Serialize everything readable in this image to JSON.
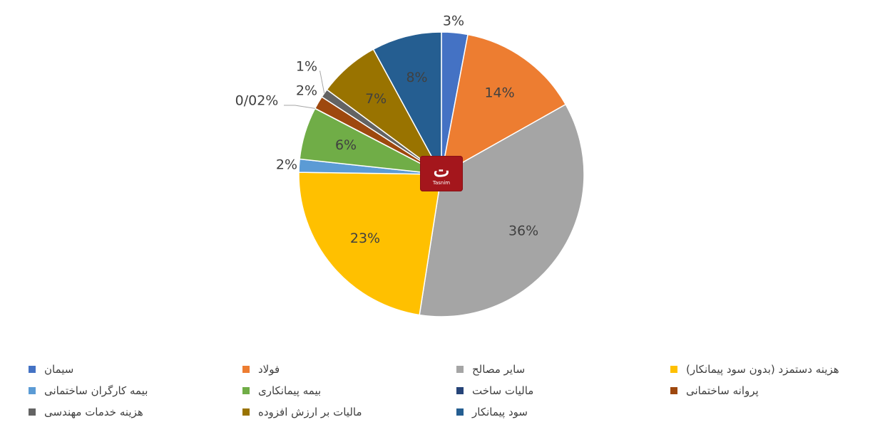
{
  "chart_data": {
    "type": "pie",
    "title": "",
    "logo_text": "تسنیم Tasnim",
    "slices": [
      {
        "name": "سیمان",
        "value": 3,
        "label": "3%",
        "color": "#4472c4"
      },
      {
        "name": "فولاد",
        "value": 14,
        "label": "14%",
        "color": "#ed7d31"
      },
      {
        "name": "سایر مصالح",
        "value": 36,
        "label": "36%",
        "color": "#a5a5a5"
      },
      {
        "name": "هزینه دستمزد (بدون سود پیمانکار)",
        "value": 23,
        "label": "23%",
        "color": "#ffc000"
      },
      {
        "name": "بیمه کارگران ساختمانی",
        "value": 1.5,
        "label": "2%",
        "color": "#5b9bd5"
      },
      {
        "name": "بیمه پیمانکاری",
        "value": 6,
        "label": "6%",
        "color": "#70ad47"
      },
      {
        "name": "مالیات ساخت",
        "value": 0.02,
        "label": "0/02%",
        "color": "#264478"
      },
      {
        "name": "پروانه ساختمانی",
        "value": 1.5,
        "label": "2%",
        "color": "#9e480e"
      },
      {
        "name": "هزینه خدمات مهندسی",
        "value": 1,
        "label": "1%",
        "color": "#636363"
      },
      {
        "name": "مالیات بر ارزش افزوده",
        "value": 7,
        "label": "7%",
        "color": "#997300"
      },
      {
        "name": "سود پیمانکار",
        "value": 8,
        "label": "8%",
        "color": "#255e91"
      }
    ]
  },
  "legend": {
    "items": [
      {
        "label": "سیمان",
        "color": "#4472c4"
      },
      {
        "label": "فولاد",
        "color": "#ed7d31"
      },
      {
        "label": "سایر مصالح",
        "color": "#a5a5a5"
      },
      {
        "label": "هزینه دستمزد (بدون سود پیمانکار)",
        "color": "#ffc000"
      },
      {
        "label": "بیمه کارگران ساختمانی",
        "color": "#5b9bd5"
      },
      {
        "label": "بیمه پیمانکاری",
        "color": "#70ad47"
      },
      {
        "label": "مالیات ساخت",
        "color": "#264478"
      },
      {
        "label": "پروانه ساختمانی",
        "color": "#9e480e"
      },
      {
        "label": "هزینه خدمات مهندسی",
        "color": "#636363"
      },
      {
        "label": "مالیات بر ارزش افزوده",
        "color": "#997300"
      },
      {
        "label": "سود پیمانکار",
        "color": "#255e91"
      }
    ]
  }
}
